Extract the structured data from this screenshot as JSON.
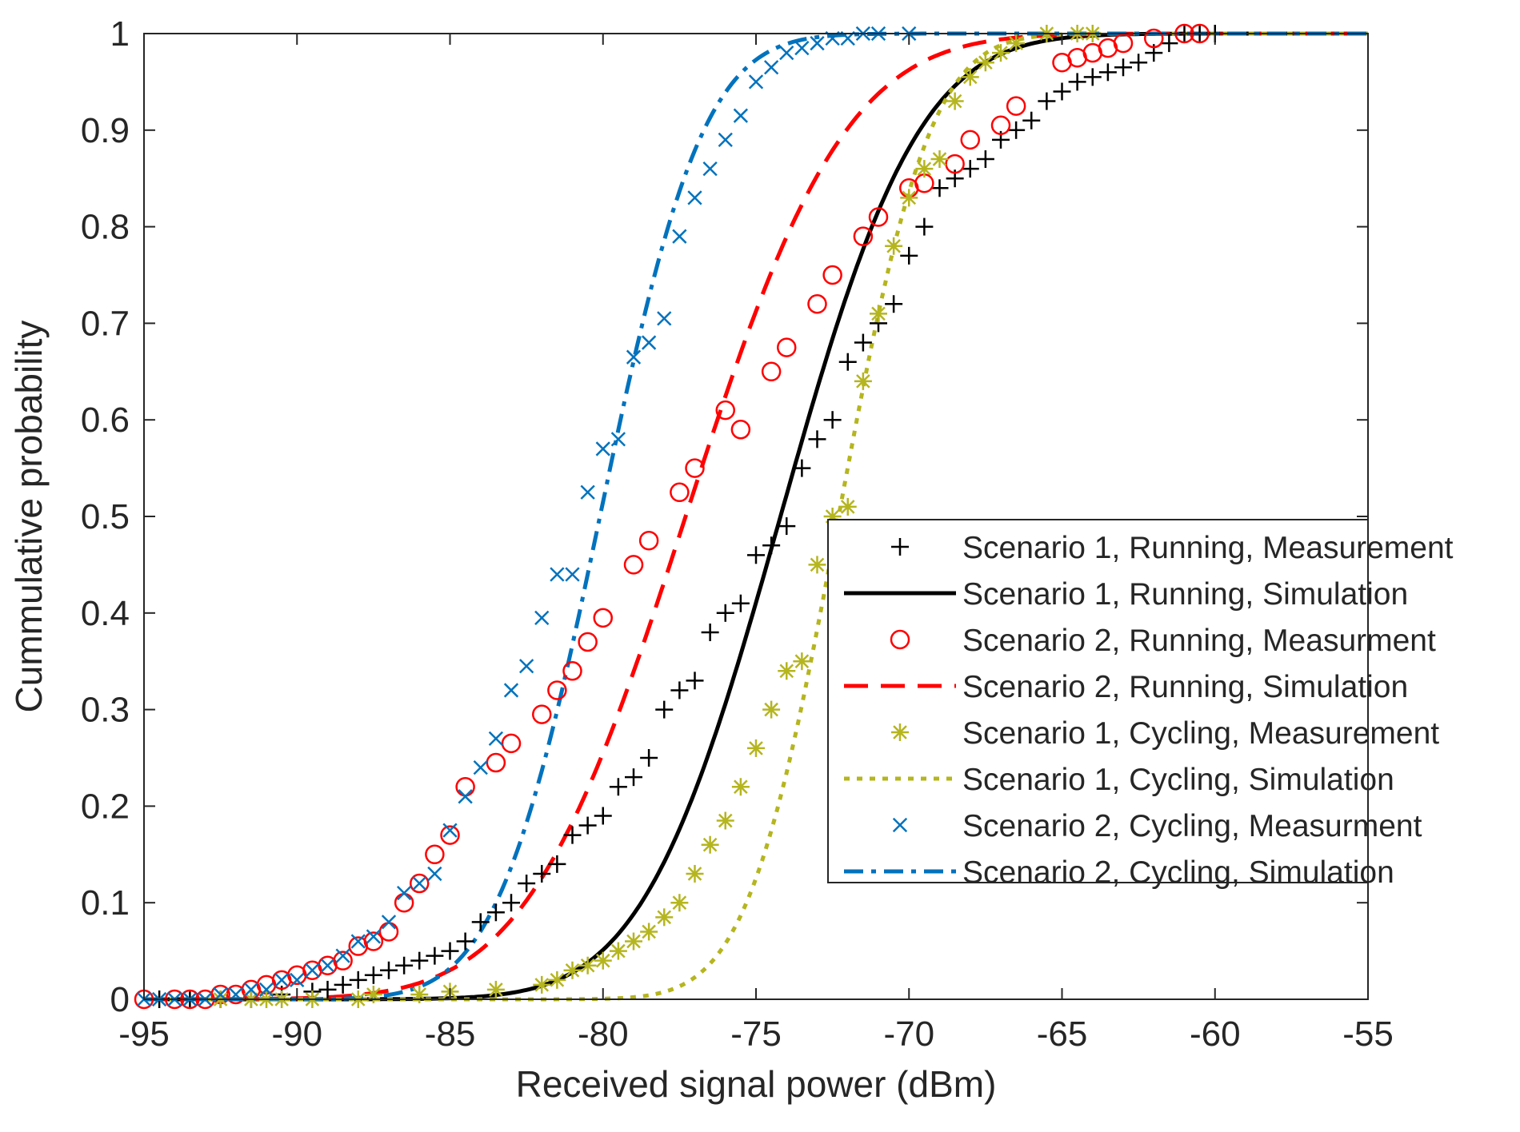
{
  "chart_data": {
    "type": "line",
    "title": "",
    "xlabel": "Received signal power (dBm)",
    "ylabel": "Cummulative probability",
    "xlim": [
      -95,
      -55
    ],
    "ylim": [
      0,
      1
    ],
    "grid": false,
    "legend_position": "center-right",
    "x_ticks": [
      {
        "value": -95,
        "label": "-95"
      },
      {
        "value": -90,
        "label": "-90"
      },
      {
        "value": -85,
        "label": "-85"
      },
      {
        "value": -80,
        "label": "-80"
      },
      {
        "value": -75,
        "label": "-75"
      },
      {
        "value": -70,
        "label": "-70"
      },
      {
        "value": -65,
        "label": "-65"
      },
      {
        "value": -60,
        "label": "-60"
      },
      {
        "value": -55,
        "label": "-55"
      }
    ],
    "y_ticks": [
      {
        "value": 0,
        "label": "0"
      },
      {
        "value": 0.1,
        "label": "0.1"
      },
      {
        "value": 0.2,
        "label": "0.2"
      },
      {
        "value": 0.3,
        "label": "0.3"
      },
      {
        "value": 0.4,
        "label": "0.4"
      },
      {
        "value": 0.5,
        "label": "0.5"
      },
      {
        "value": 0.6,
        "label": "0.6"
      },
      {
        "value": 0.7,
        "label": "0.7"
      },
      {
        "value": 0.8,
        "label": "0.8"
      },
      {
        "value": 0.9,
        "label": "0.9"
      },
      {
        "value": 1,
        "label": "1"
      }
    ],
    "series": [
      {
        "name": "Scenario 1, Running, Measurement",
        "kind": "marker",
        "marker": "plus",
        "color": "#000000",
        "x": [
          -94.5,
          -93.5,
          -92.5,
          -91.5,
          -90.5,
          -89.5,
          -89.0,
          -88.5,
          -88.0,
          -87.5,
          -87.0,
          -86.5,
          -86.0,
          -85.5,
          -85.0,
          -84.5,
          -84.0,
          -83.5,
          -83.0,
          -82.5,
          -82.0,
          -81.5,
          -81.0,
          -80.5,
          -80.0,
          -79.5,
          -79.0,
          -78.5,
          -78.0,
          -77.5,
          -77.0,
          -76.5,
          -76.0,
          -75.5,
          -75.0,
          -74.5,
          -74.0,
          -73.5,
          -73.0,
          -72.5,
          -72.0,
          -71.5,
          -71.0,
          -70.5,
          -70.0,
          -69.5,
          -69.0,
          -68.5,
          -68.0,
          -67.5,
          -67.0,
          -66.5,
          -66.0,
          -65.5,
          -65.0,
          -64.5,
          -64.0,
          -63.5,
          -63.0,
          -62.5,
          -62.0,
          -61.5,
          -61.0,
          -60.5,
          -60.0
        ],
        "y": [
          0.0,
          0.0,
          0.0,
          0.0,
          0.005,
          0.008,
          0.01,
          0.015,
          0.02,
          0.025,
          0.03,
          0.035,
          0.04,
          0.045,
          0.05,
          0.06,
          0.08,
          0.09,
          0.1,
          0.12,
          0.13,
          0.14,
          0.17,
          0.18,
          0.19,
          0.22,
          0.23,
          0.25,
          0.3,
          0.32,
          0.33,
          0.38,
          0.4,
          0.41,
          0.46,
          0.47,
          0.49,
          0.55,
          0.58,
          0.6,
          0.66,
          0.68,
          0.7,
          0.72,
          0.77,
          0.8,
          0.84,
          0.85,
          0.86,
          0.87,
          0.89,
          0.9,
          0.91,
          0.93,
          0.94,
          0.95,
          0.955,
          0.96,
          0.965,
          0.97,
          0.98,
          0.99,
          1.0,
          1.0,
          1.0
        ]
      },
      {
        "name": "Scenario 1, Running, Simulation",
        "kind": "line",
        "style": "solid",
        "color": "#000000",
        "mu": -74.2,
        "sigma": 3.55
      },
      {
        "name": "Scenario 2, Running, Measurment",
        "kind": "marker",
        "marker": "circle",
        "color": "#ff0000",
        "x": [
          -95.0,
          -94.0,
          -93.5,
          -93.0,
          -92.5,
          -92.0,
          -91.5,
          -91.0,
          -90.5,
          -90.0,
          -89.5,
          -89.0,
          -88.5,
          -88.0,
          -87.5,
          -87.0,
          -86.5,
          -86.0,
          -85.5,
          -85.0,
          -84.5,
          -83.5,
          -83.0,
          -82.0,
          -81.5,
          -81.0,
          -80.5,
          -80.0,
          -79.0,
          -78.5,
          -77.5,
          -77.0,
          -76.0,
          -75.5,
          -74.5,
          -74.0,
          -73.0,
          -72.5,
          -71.5,
          -71.0,
          -70.0,
          -69.5,
          -68.5,
          -68.0,
          -67.0,
          -66.5,
          -65.0,
          -64.5,
          -64.0,
          -63.5,
          -63.0,
          -62.0,
          -61.0,
          -60.5
        ],
        "y": [
          0.0,
          0.0,
          0.0,
          0.0,
          0.005,
          0.005,
          0.01,
          0.015,
          0.02,
          0.025,
          0.03,
          0.035,
          0.04,
          0.055,
          0.06,
          0.07,
          0.1,
          0.12,
          0.15,
          0.17,
          0.22,
          0.245,
          0.265,
          0.295,
          0.32,
          0.34,
          0.37,
          0.395,
          0.45,
          0.475,
          0.525,
          0.55,
          0.61,
          0.59,
          0.65,
          0.675,
          0.72,
          0.75,
          0.79,
          0.81,
          0.84,
          0.845,
          0.865,
          0.89,
          0.905,
          0.925,
          0.97,
          0.975,
          0.98,
          0.985,
          0.99,
          0.995,
          1.0,
          1.0
        ]
      },
      {
        "name": "Scenario 2, Running, Simulation",
        "kind": "line",
        "style": "dashed",
        "color": "#ff0000",
        "mu": -77.3,
        "sigma": 4.1
      },
      {
        "name": "Scenario 1, Cycling, Measurement",
        "kind": "marker",
        "marker": "asterisk",
        "color": "#b5b51f",
        "x": [
          -92.5,
          -91.5,
          -91.0,
          -90.5,
          -89.5,
          -88.0,
          -87.5,
          -86.0,
          -85.0,
          -83.5,
          -82.0,
          -81.5,
          -81.0,
          -80.5,
          -80.0,
          -79.5,
          -79.0,
          -78.5,
          -78.0,
          -77.5,
          -77.0,
          -76.5,
          -76.0,
          -75.5,
          -75.0,
          -74.5,
          -74.0,
          -73.5,
          -73.0,
          -72.5,
          -72.0,
          -71.5,
          -71.0,
          -70.5,
          -70.0,
          -69.5,
          -69.0,
          -68.5,
          -68.0,
          -67.5,
          -67.0,
          -66.5,
          -65.5,
          -64.5,
          -64.0
        ],
        "y": [
          0.0,
          0.0,
          0.0,
          0.0,
          0.0,
          0.0,
          0.005,
          0.005,
          0.008,
          0.01,
          0.015,
          0.02,
          0.03,
          0.035,
          0.04,
          0.05,
          0.06,
          0.07,
          0.085,
          0.1,
          0.13,
          0.16,
          0.185,
          0.22,
          0.26,
          0.3,
          0.34,
          0.35,
          0.45,
          0.5,
          0.51,
          0.64,
          0.71,
          0.78,
          0.83,
          0.86,
          0.87,
          0.93,
          0.955,
          0.97,
          0.98,
          0.99,
          1.0,
          1.0,
          1.0
        ]
      },
      {
        "name": "Scenario 1, Cycling, Simulation",
        "kind": "line",
        "style": "dotted",
        "color": "#b5b51f",
        "mu": -72.3,
        "sigma": 2.35
      },
      {
        "name": "Scenario 2, Cycling, Measurment",
        "kind": "marker",
        "marker": "x",
        "color": "#0072bd",
        "x": [
          -95.0,
          -94.5,
          -94.0,
          -93.5,
          -93.0,
          -92.5,
          -92.0,
          -91.5,
          -91.0,
          -90.5,
          -90.0,
          -89.5,
          -89.0,
          -88.5,
          -88.0,
          -87.5,
          -87.0,
          -86.5,
          -86.0,
          -85.5,
          -85.0,
          -84.5,
          -84.0,
          -83.5,
          -83.0,
          -82.5,
          -82.0,
          -81.5,
          -81.0,
          -80.5,
          -80.0,
          -79.5,
          -79.0,
          -78.5,
          -78.0,
          -77.5,
          -77.0,
          -76.5,
          -76.0,
          -75.5,
          -75.0,
          -74.5,
          -74.0,
          -73.5,
          -73.0,
          -72.5,
          -72.0,
          -71.5,
          -71.0,
          -70.0
        ],
        "y": [
          0.0,
          0.0,
          0.0,
          0.0,
          0.0,
          0.005,
          0.005,
          0.01,
          0.01,
          0.02,
          0.02,
          0.03,
          0.035,
          0.045,
          0.06,
          0.065,
          0.08,
          0.11,
          0.12,
          0.13,
          0.175,
          0.21,
          0.24,
          0.27,
          0.32,
          0.345,
          0.395,
          0.44,
          0.44,
          0.525,
          0.57,
          0.58,
          0.665,
          0.68,
          0.705,
          0.79,
          0.83,
          0.86,
          0.89,
          0.915,
          0.95,
          0.965,
          0.98,
          0.985,
          0.99,
          0.995,
          0.995,
          1.0,
          1.0,
          1.0
        ]
      },
      {
        "name": "Scenario 2, Cycling, Simulation",
        "kind": "line",
        "style": "dashdot",
        "color": "#0072bd",
        "mu": -80.1,
        "sigma": 2.65
      }
    ]
  }
}
